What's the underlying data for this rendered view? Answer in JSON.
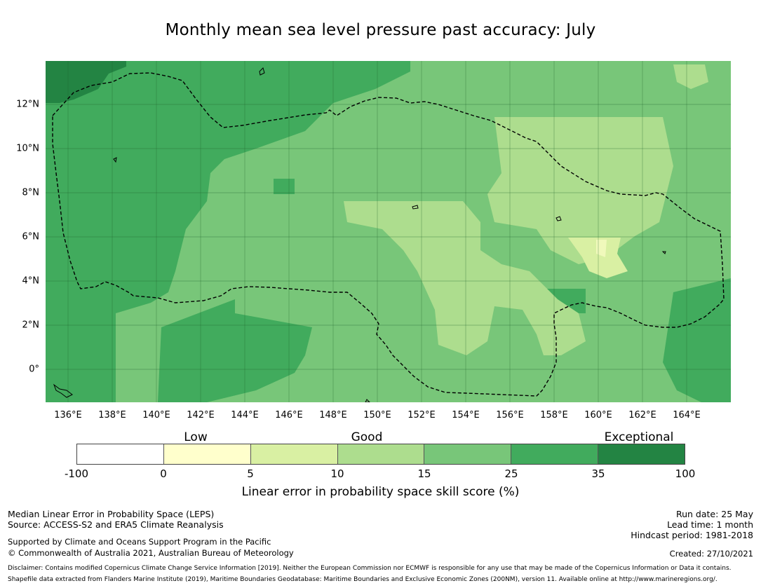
{
  "title": "Monthly mean sea level pressure past accuracy: July",
  "map": {
    "lat_labels": [
      "12°N",
      "10°N",
      "8°N",
      "6°N",
      "4°N",
      "2°N",
      "0°"
    ],
    "lon_labels": [
      "136°E",
      "138°E",
      "140°E",
      "142°E",
      "144°E",
      "146°E",
      "148°E",
      "150°E",
      "152°E",
      "154°E",
      "156°E",
      "158°E",
      "160°E",
      "162°E",
      "164°E"
    ],
    "extent": {
      "lon": [
        134.9,
        166.1
      ],
      "lat": [
        -1.5,
        14
      ]
    }
  },
  "legend": {
    "categories": [
      "Low",
      "Good",
      "Exceptional"
    ],
    "ticks": [
      "-100",
      "0",
      "5",
      "10",
      "15",
      "25",
      "35",
      "100"
    ],
    "colors": [
      "#ffffff",
      "#ffffcc",
      "#d9f0a3",
      "#addd8e",
      "#78c679",
      "#41ab5d",
      "#238443"
    ],
    "label": "Linear error in probability space skill score (%)"
  },
  "footer": {
    "line1": "Median Linear Error in Probability Space (LEPS)",
    "line2": "Source: ACCESS-S2 and ERA5 Climate Reanalysis",
    "line3": "Supported by Climate and Oceans Support Program in the Pacific",
    "line4": "© Commonwealth of Australia 2021, Australian Bureau of Meteorology",
    "run_date": "Run date: 25 May",
    "lead_time": "Lead time: 1 month",
    "hindcast": "Hindcast period: 1981-2018",
    "created": "Created: 27/10/2021",
    "disclaimer": "Disclaimer: Contains modified Copernicus Climate Change Service Information [2019]. Neither the European Commission nor ECMWF is responsible for any use that may be made of the Copernicus Information or Data it contains.",
    "shapefile": "Shapefile data extracted from Flanders Marine Institute (2019), Maritime Boundaries Geodatabase: Maritime Boundaries and Exclusive Economic Zones (200NM), version 11. Available online at http://www.marineregions.org/."
  }
}
